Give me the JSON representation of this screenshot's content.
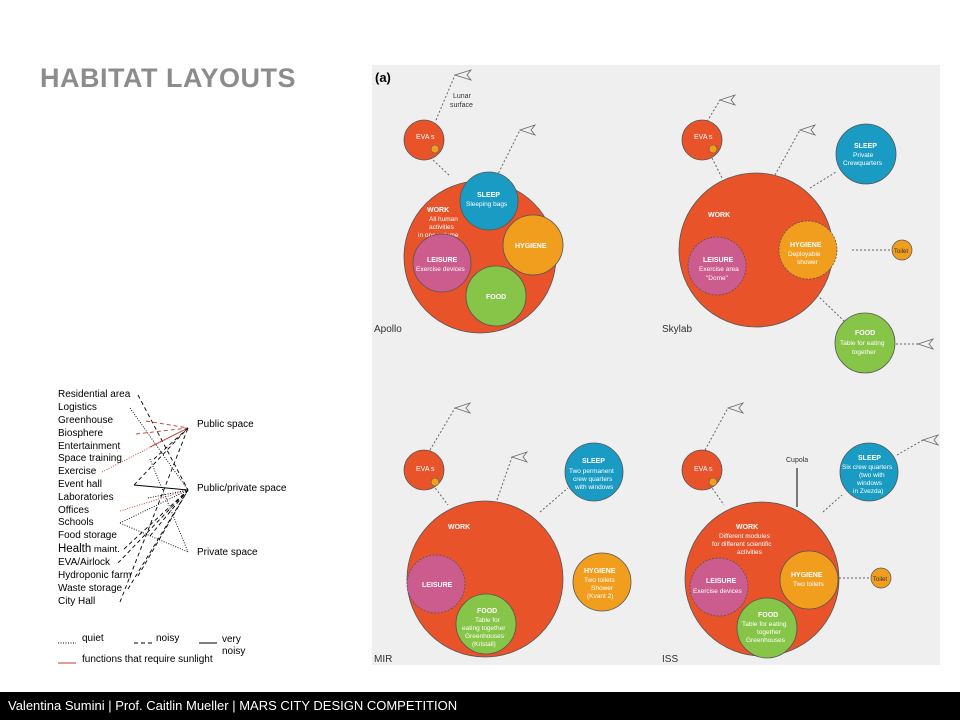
{
  "title": "HABITAT LAYOUTS",
  "footer": "Valentina Sumini | Prof. Caitlin Mueller | MARS CITY DESIGN COMPETITION",
  "functions": [
    {
      "label": "Residential area"
    },
    {
      "label": "Logistics"
    },
    {
      "label": "Greenhouse"
    },
    {
      "label": "Biosphere"
    },
    {
      "label": "Entertainment"
    },
    {
      "label": "Space training"
    },
    {
      "label": "Exercise"
    },
    {
      "label": "Event hall"
    },
    {
      "label": "Laboratories"
    },
    {
      "label": "Offices"
    },
    {
      "label": "Schools"
    },
    {
      "label": "Food storage"
    },
    {
      "label_big": "Health",
      "label_small": " maint."
    },
    {
      "label": "EVA/Airlock"
    },
    {
      "label": "Hydroponic farm"
    },
    {
      "label": "Waste storage"
    },
    {
      "label": "City Hall"
    }
  ],
  "spaces": [
    "Public space",
    "Public/private space",
    "Private space"
  ],
  "legend": {
    "quiet": "quiet",
    "noisy": "noisy",
    "very_noisy_1": "very",
    "very_noisy_2": "noisy",
    "sunlight": "functions that require sunlight"
  },
  "panel_label": "(a)",
  "colors": {
    "work": "#e8532a",
    "sleep": "#1a9bc4",
    "hygiene": "#f19e1f",
    "leisure": "#cc5b8e",
    "food": "#86c548",
    "sunlight_line": "#c0392b",
    "title_grey": "#8c8c8c"
  },
  "diagrams": {
    "apollo": {
      "name": "Apollo",
      "eva": "EVA s",
      "lunar1": "Lunar",
      "lunar2": "surface",
      "work": "WORK",
      "work_sub1": "All human",
      "work_sub2": "activities",
      "work_sub3": "in one volume",
      "sleep": "SLEEP",
      "sleep_sub": "Sleeping bags",
      "hygiene": "HYGIENE",
      "leisure": "LEISURE",
      "leisure_sub": "Exercise devices",
      "food": "FOOD"
    },
    "skylab": {
      "name": "Skylab",
      "eva": "EVA s",
      "work": "WORK",
      "sleep": "SLEEP",
      "sleep_sub1": "Private",
      "sleep_sub2": "Crewquarters",
      "hygiene": "HYGIENE",
      "hygiene_sub1": "Deployable",
      "hygiene_sub2": "shower",
      "leisure": "LEISURE",
      "leisure_sub1": "Exercise area",
      "leisure_sub2": "\"Dome\"",
      "toilet": "Toilet",
      "food": "FOOD",
      "food_sub1": "Table for eating",
      "food_sub2": "together"
    },
    "mir": {
      "name": "MIR",
      "eva": "EVA s",
      "work": "WORK",
      "sleep": "SLEEP",
      "sleep_sub1": "Two permanent",
      "sleep_sub2": "crew quarters",
      "sleep_sub3": "with windows",
      "leisure": "LEISURE",
      "food": "FOOD",
      "food_sub1": "Table for",
      "food_sub2": "eating together",
      "food_sub3": "Greenhouses",
      "food_sub4": "(Kristall)",
      "hygiene": "HYGIENE",
      "hygiene_sub1": "Two toilets",
      "hygiene_sub2": "Shower",
      "hygiene_sub3": "(Kvant 2)"
    },
    "iss": {
      "name": "ISS",
      "eva": "EVA s",
      "cupola": "Cupola",
      "work": "WORK",
      "work_sub1": "Different modules",
      "work_sub2": "for different scientific",
      "work_sub3": "activities",
      "sleep": "SLEEP",
      "sleep_sub1": "Six crew quarters",
      "sleep_sub2": "(two with",
      "sleep_sub3": "windows",
      "sleep_sub4": "in Zvezda)",
      "leisure": "LEISURE",
      "leisure_sub": "Exercise devices",
      "hygiene": "HYGIENE",
      "hygiene_sub": "Two toilets",
      "toilet": "Toilet",
      "food": "FOOD",
      "food_sub1": "Table for eating",
      "food_sub2": "together",
      "food_sub3": "Greenhouses"
    }
  }
}
